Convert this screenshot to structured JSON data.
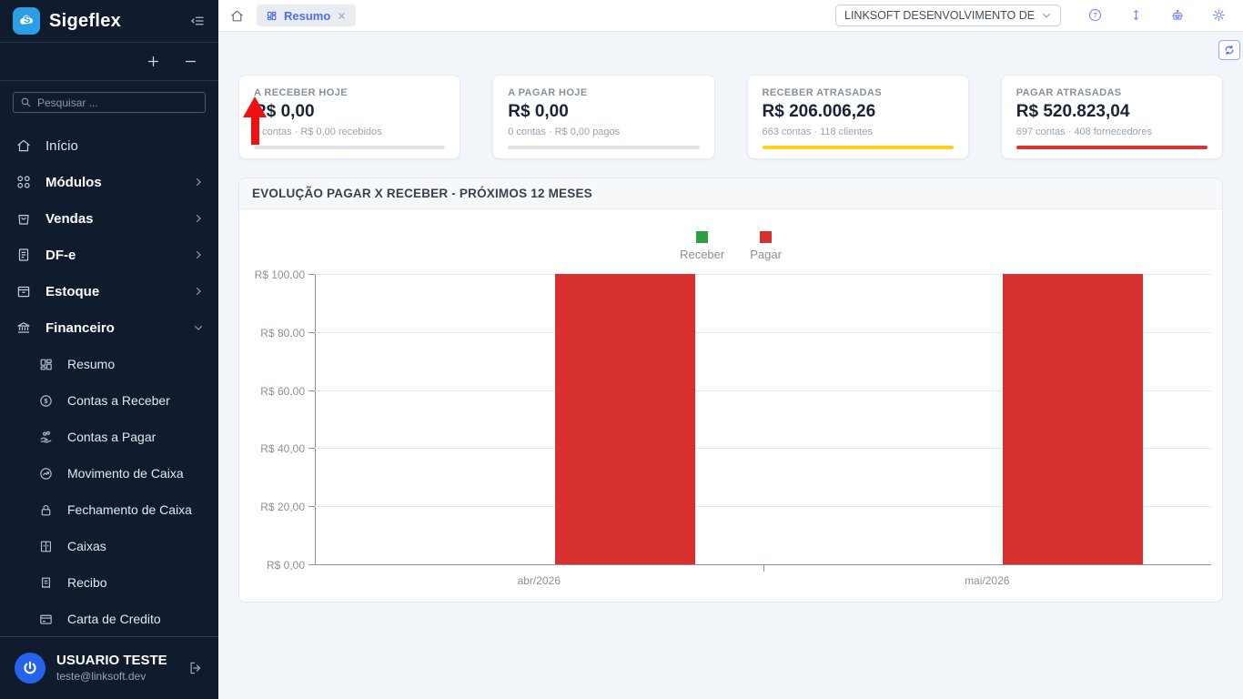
{
  "app": {
    "brand": "Sigeflex"
  },
  "colors": {
    "sidebar_bg": "#101c2e",
    "accent_blue": "#4c6ef5",
    "topbar_icon_blue": "#7c8ff8",
    "logo_blue": "#2b9fe6",
    "avatar_blue": "#2563eb",
    "annotation_red": "#ee1111"
  },
  "sidebar": {
    "search_placeholder": "Pesquisar ...",
    "action_icons": [
      "plus-icon",
      "minus-icon"
    ],
    "items": [
      {
        "label": "Início",
        "icon": "home",
        "has_submenu": false
      },
      {
        "label": "Módulos",
        "icon": "modules-grid",
        "has_submenu": true
      },
      {
        "label": "Vendas",
        "icon": "shopping-bag",
        "has_submenu": true
      },
      {
        "label": "DF-e",
        "icon": "document",
        "has_submenu": true
      },
      {
        "label": "Estoque",
        "icon": "box",
        "has_submenu": true
      },
      {
        "label": "Financeiro",
        "icon": "bank",
        "has_submenu": true,
        "expanded": true
      }
    ],
    "financeiro_submenu": [
      {
        "label": "Resumo",
        "icon": "dashboard"
      },
      {
        "label": "Contas a Receber",
        "icon": "dollar-circle"
      },
      {
        "label": "Contas a Pagar",
        "icon": "hand-coins"
      },
      {
        "label": "Movimento de Caixa",
        "icon": "trend-circle"
      },
      {
        "label": "Fechamento de Caixa",
        "icon": "lock"
      },
      {
        "label": "Caixas",
        "icon": "cashbox"
      },
      {
        "label": "Recibo",
        "icon": "receipt"
      },
      {
        "label": "Carta de Credito",
        "icon": "credit-card"
      }
    ],
    "user": {
      "name": "USUARIO TESTE",
      "email": "teste@linksoft.dev"
    }
  },
  "topbar": {
    "tab": {
      "label": "Resumo",
      "icon": "dashboard"
    },
    "company_selector": {
      "value": "LINKSOFT DESENVOLVIMENTO DE ..."
    },
    "icons": [
      "help-icon",
      "vertical-arrows-icon",
      "robot-icon",
      "settings-icon"
    ]
  },
  "content": {
    "refresh_icon": "refresh-icon",
    "annotation": {
      "shape": "arrow-up",
      "color": "#ee1111"
    }
  },
  "cards": [
    {
      "label": "A RECEBER HOJE",
      "value": "R$ 0,00",
      "sub": "0 contas · R$ 0,00 recebidos",
      "bar_color": "#dfe3ea"
    },
    {
      "label": "A PAGAR HOJE",
      "value": "R$ 0,00",
      "sub": "0 contas · R$ 0,00 pagos",
      "bar_color": "#dfe3ea"
    },
    {
      "label": "RECEBER ATRASADAS",
      "value": "R$ 206.006,26",
      "sub": "663 contas · 118 clientes",
      "bar_color": "#ffd213"
    },
    {
      "label": "PAGAR ATRASADAS",
      "value": "R$ 520.823,04",
      "sub": "697 contas · 408 fornecedores",
      "bar_color": "#e03131"
    }
  ],
  "chart_data": {
    "type": "bar",
    "title": "EVOLUÇÃO PAGAR X RECEBER - PRÓXIMOS 12 MESES",
    "categories": [
      "abr/2026",
      "mai/2026"
    ],
    "series": [
      {
        "name": "Receber",
        "color": "#2d9e44",
        "values": [
          0,
          0
        ]
      },
      {
        "name": "Pagar",
        "color": "#d7302f",
        "values": [
          100,
          100
        ]
      }
    ],
    "ylim": [
      0,
      100
    ],
    "yticks": [
      {
        "value": 0,
        "label": "R$ 0,00"
      },
      {
        "value": 20,
        "label": "R$ 20,00"
      },
      {
        "value": 40,
        "label": "R$ 40,00"
      },
      {
        "value": 60,
        "label": "R$ 60,00"
      },
      {
        "value": 80,
        "label": "R$ 80,00"
      },
      {
        "value": 100,
        "label": "R$ 100,00"
      }
    ],
    "grid": true,
    "legend_position": "top-center"
  }
}
